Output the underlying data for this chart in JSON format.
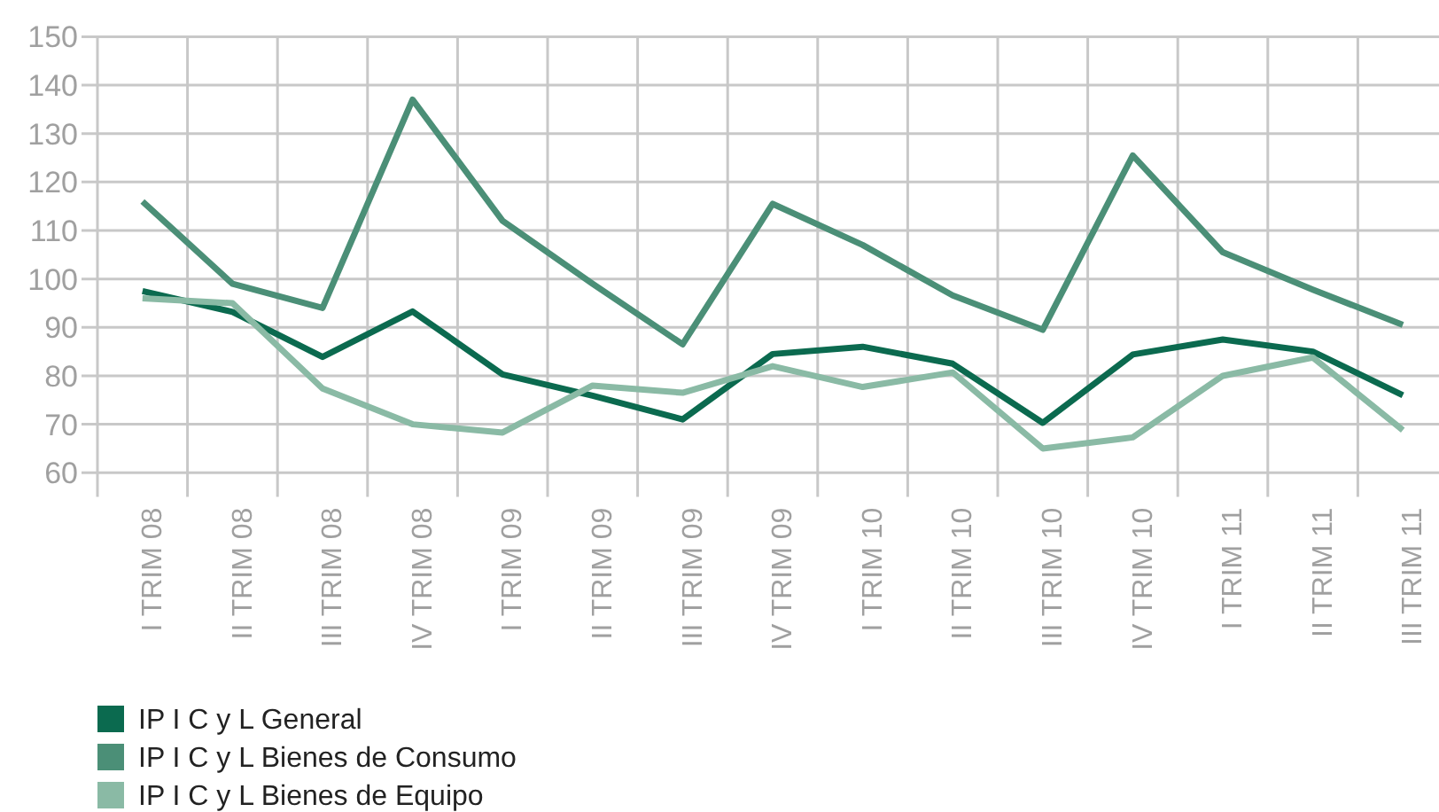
{
  "chart_data": {
    "type": "line",
    "categories": [
      "I TRIM 08",
      "II TRIM 08",
      "III TRIM 08",
      "IV TRIM 08",
      "I TRIM 09",
      "II TRIM 09",
      "III TRIM 09",
      "IV TRIM 09",
      "I TRIM 10",
      "II TRIM 10",
      "III TRIM 10",
      "IV TRIM 10",
      "I TRIM 11",
      "II TRIM 11",
      "III TRIM 11"
    ],
    "series": [
      {
        "name": "IP I C y L General",
        "color": "#0b6a4f",
        "values": [
          97.5,
          93.2,
          83.9,
          93.3,
          80.3,
          75.9,
          71,
          84.5,
          86,
          82.5,
          70.3,
          84.4,
          87.5,
          85,
          76
        ]
      },
      {
        "name": "IP I C y L Bienes de Consumo",
        "color": "#4b8f77",
        "values": [
          116,
          99,
          94,
          137,
          112,
          99,
          86.5,
          115.5,
          107,
          96.6,
          89.5,
          125.5,
          105.5,
          97.8,
          90.5
        ]
      },
      {
        "name": "IP I C y L Bienes de Equipo",
        "color": "#8abaa5",
        "values": [
          96,
          95,
          77.4,
          70,
          68.3,
          78,
          76.5,
          82,
          77.7,
          80.7,
          65,
          67.3,
          80,
          83.8,
          68.8
        ]
      }
    ],
    "ylim": [
      55,
      150
    ],
    "yticks": [
      60,
      70,
      80,
      90,
      100,
      110,
      120,
      130,
      140,
      150
    ],
    "grid": true,
    "legend": "bottom"
  }
}
